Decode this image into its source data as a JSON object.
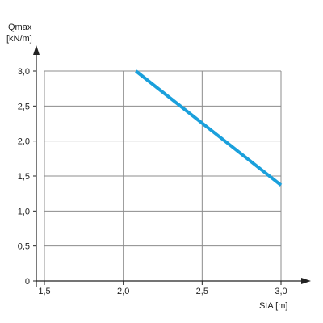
{
  "chart_data": {
    "type": "line",
    "ylabel_line1": "Qmax",
    "ylabel_line2": "[kN/m]",
    "xlabel": "StA [m]",
    "xlim": [
      1.5,
      3.0
    ],
    "ylim": [
      0,
      3.0
    ],
    "x_ticks": [
      "1,5",
      "2,0",
      "2,5",
      "3,0"
    ],
    "y_ticks": [
      "0",
      "0,5",
      "1,0",
      "1,5",
      "2,0",
      "2,5",
      "3,0"
    ],
    "grid": true,
    "series": [
      {
        "color": "#1aa0dc",
        "x": [
          2.08,
          3.0
        ],
        "y": [
          3.0,
          1.37
        ]
      }
    ]
  }
}
